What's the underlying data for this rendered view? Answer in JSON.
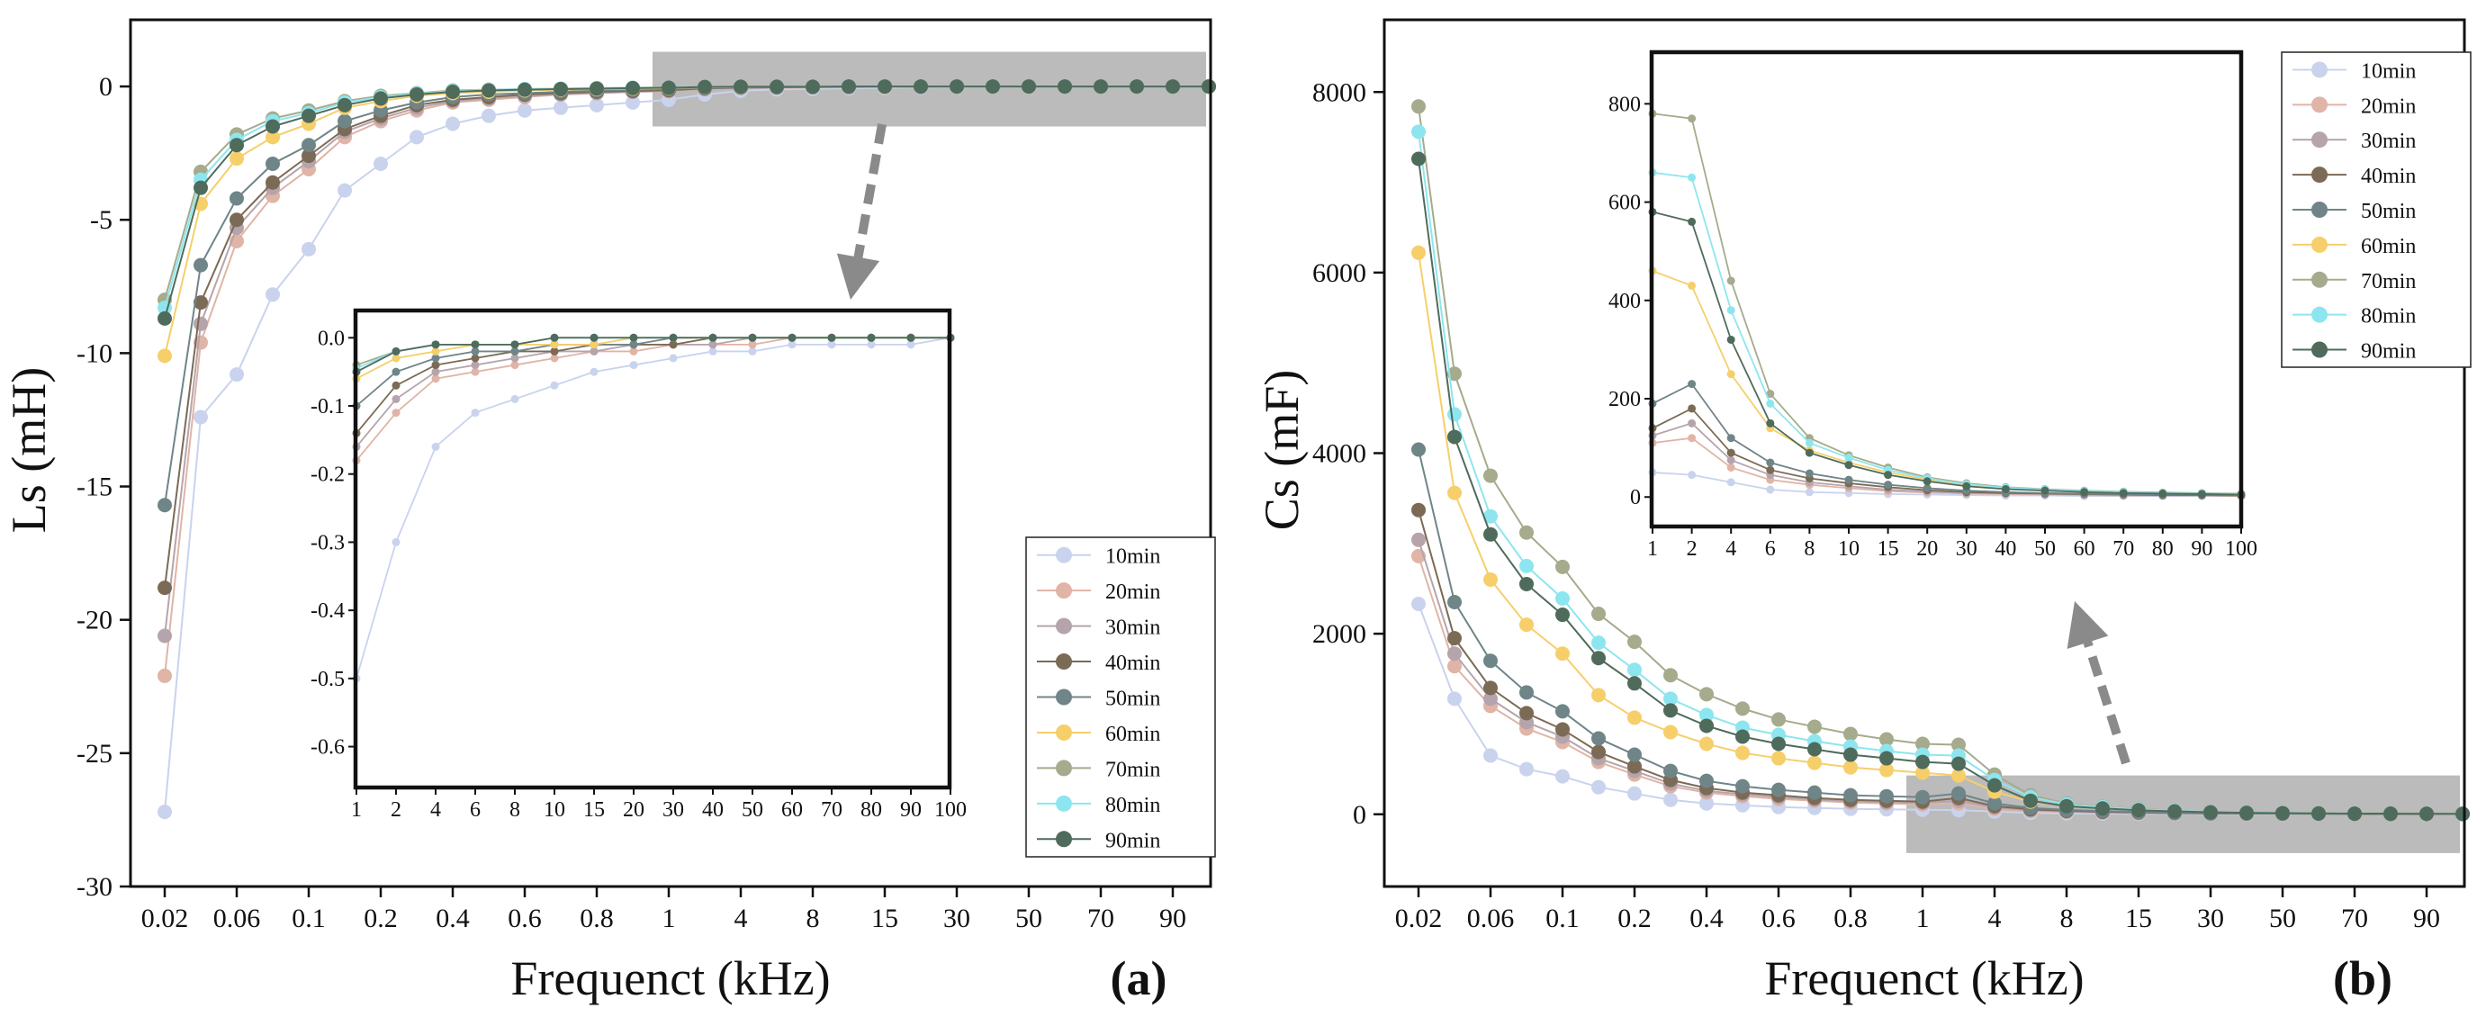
{
  "chart_data": [
    {
      "type": "line",
      "panel_label": "(a)",
      "xlabel": "Frequenct (kHz)",
      "ylabel": "Ls (mH)",
      "ylim": [
        -30,
        2.5
      ],
      "yticks": [
        0,
        -5,
        -10,
        -15,
        -20,
        -25,
        -30
      ],
      "x_positions": [
        0.02,
        0.04,
        0.06,
        0.08,
        0.1,
        0.15,
        0.2,
        0.3,
        0.4,
        0.5,
        0.6,
        0.7,
        0.8,
        0.9,
        1,
        2,
        4,
        6,
        8,
        10,
        15,
        20,
        30,
        40,
        50,
        60,
        70,
        80,
        90,
        100
      ],
      "x_tick_labels": [
        "0.02",
        "0.06",
        "0.1",
        "0.2",
        "0.4",
        "0.6",
        "0.8",
        "1",
        "4",
        "8",
        "15",
        "30",
        "50",
        "70",
        "90"
      ],
      "legend": "bottom-right",
      "series": [
        {
          "name": "10min",
          "color": "#c9d3ee",
          "values": [
            -27.2,
            -12.4,
            -10.8,
            -7.8,
            -6.1,
            -3.9,
            -2.9,
            -1.9,
            -1.4,
            -1.1,
            -0.9,
            -0.8,
            -0.7,
            -0.6,
            -0.5,
            -0.3,
            -0.16,
            -0.11,
            -0.09,
            -0.07,
            -0.05,
            -0.04,
            -0.03,
            -0.02,
            -0.02,
            -0.01,
            -0.01,
            -0.01,
            -0.01,
            0
          ]
        },
        {
          "name": "20min",
          "color": "#e0b4a6",
          "values": [
            -22.1,
            -9.6,
            -5.8,
            -4.1,
            -3.1,
            -1.9,
            -1.3,
            -0.9,
            -0.6,
            -0.5,
            -0.4,
            -0.3,
            -0.25,
            -0.2,
            -0.18,
            -0.11,
            -0.06,
            -0.05,
            -0.04,
            -0.03,
            -0.02,
            -0.02,
            -0.01,
            -0.01,
            -0.01,
            0,
            0,
            0,
            0,
            0
          ]
        },
        {
          "name": "30min",
          "color": "#b6a4ac",
          "values": [
            -20.6,
            -8.9,
            -5.3,
            -3.8,
            -2.8,
            -1.7,
            -1.2,
            -0.8,
            -0.55,
            -0.45,
            -0.35,
            -0.3,
            -0.25,
            -0.2,
            -0.16,
            -0.09,
            -0.05,
            -0.04,
            -0.03,
            -0.02,
            -0.02,
            -0.01,
            -0.01,
            -0.01,
            0,
            0,
            0,
            0,
            0,
            0
          ]
        },
        {
          "name": "40min",
          "color": "#7b6a55",
          "values": [
            -18.8,
            -8.1,
            -5.0,
            -3.6,
            -2.6,
            -1.6,
            -1.1,
            -0.7,
            -0.5,
            -0.4,
            -0.3,
            -0.25,
            -0.2,
            -0.17,
            -0.14,
            -0.07,
            -0.04,
            -0.03,
            -0.02,
            -0.02,
            -0.01,
            -0.01,
            -0.01,
            0,
            0,
            0,
            0,
            0,
            0,
            0
          ]
        },
        {
          "name": "50min",
          "color": "#6f8588",
          "values": [
            -15.7,
            -6.7,
            -4.2,
            -2.9,
            -2.2,
            -1.3,
            -0.9,
            -0.6,
            -0.4,
            -0.3,
            -0.25,
            -0.2,
            -0.15,
            -0.12,
            -0.1,
            -0.05,
            -0.03,
            -0.02,
            -0.02,
            -0.01,
            -0.01,
            -0.01,
            0,
            0,
            0,
            0,
            0,
            0,
            0,
            0
          ]
        },
        {
          "name": "60min",
          "color": "#f6cf6b",
          "values": [
            -10.1,
            -4.4,
            -2.7,
            -1.9,
            -1.4,
            -0.8,
            -0.55,
            -0.35,
            -0.25,
            -0.2,
            -0.15,
            -0.12,
            -0.1,
            -0.08,
            -0.06,
            -0.03,
            -0.02,
            -0.01,
            -0.01,
            -0.01,
            -0.01,
            0,
            0,
            0,
            0,
            0,
            0,
            0,
            0,
            0
          ]
        },
        {
          "name": "70min",
          "color": "#a5ab8c",
          "values": [
            -8.0,
            -3.2,
            -1.8,
            -1.2,
            -0.9,
            -0.55,
            -0.35,
            -0.25,
            -0.15,
            -0.12,
            -0.1,
            -0.08,
            -0.06,
            -0.05,
            -0.04,
            -0.02,
            -0.01,
            -0.01,
            -0.01,
            0,
            0,
            0,
            0,
            0,
            0,
            0,
            0,
            0,
            0,
            0
          ]
        },
        {
          "name": "80min",
          "color": "#8de6ef",
          "values": [
            -8.3,
            -3.5,
            -2.0,
            -1.3,
            -1.0,
            -0.6,
            -0.4,
            -0.27,
            -0.17,
            -0.13,
            -0.1,
            -0.08,
            -0.07,
            -0.05,
            -0.045,
            -0.02,
            -0.01,
            -0.01,
            -0.01,
            0,
            0,
            0,
            0,
            0,
            0,
            0,
            0,
            0,
            0,
            0
          ]
        },
        {
          "name": "90min",
          "color": "#4f6b5b",
          "values": [
            -8.7,
            -3.8,
            -2.2,
            -1.5,
            -1.1,
            -0.7,
            -0.45,
            -0.3,
            -0.2,
            -0.15,
            -0.12,
            -0.1,
            -0.08,
            -0.06,
            -0.05,
            -0.02,
            -0.01,
            -0.01,
            -0.01,
            0,
            0,
            0,
            0,
            0,
            0,
            0,
            0,
            0,
            0,
            0
          ]
        }
      ],
      "highlight_range": {
        "x_from": 1,
        "x_to": 100,
        "y_from": -1.5,
        "y_to": 1.3
      },
      "inset": {
        "x_positions": [
          1,
          2,
          4,
          6,
          8,
          10,
          15,
          20,
          30,
          40,
          50,
          60,
          70,
          80,
          90,
          100
        ],
        "x_tick_labels": [
          "1",
          "2",
          "4",
          "6",
          "8",
          "10",
          "15",
          "20",
          "30",
          "40",
          "50",
          "60",
          "70",
          "80",
          "90",
          "100"
        ],
        "ylim": [
          -0.66,
          0.04
        ],
        "yticks": [
          "0.0",
          "-0.1",
          "-0.2",
          "-0.3",
          "-0.4",
          "-0.5",
          "-0.6"
        ]
      }
    },
    {
      "type": "line",
      "panel_label": "(b)",
      "xlabel": "Frequenct (kHz)",
      "ylabel": "Cs (mF)",
      "ylim": [
        -800,
        8800
      ],
      "yticks": [
        0,
        2000,
        4000,
        6000,
        8000
      ],
      "x_positions": [
        0.02,
        0.04,
        0.06,
        0.08,
        0.1,
        0.15,
        0.2,
        0.3,
        0.4,
        0.5,
        0.6,
        0.7,
        0.8,
        0.9,
        1,
        2,
        4,
        6,
        8,
        10,
        15,
        20,
        30,
        40,
        50,
        60,
        70,
        80,
        90,
        100
      ],
      "x_tick_labels": [
        "0.02",
        "0.06",
        "0.1",
        "0.2",
        "0.4",
        "0.6",
        "0.8",
        "1",
        "4",
        "8",
        "15",
        "30",
        "50",
        "70",
        "90"
      ],
      "legend": "top-right",
      "series": [
        {
          "name": "10min",
          "color": "#c9d3ee",
          "values": [
            2330,
            1280,
            650,
            500,
            420,
            300,
            230,
            160,
            120,
            100,
            80,
            70,
            60,
            55,
            50,
            45,
            30,
            15,
            10,
            8,
            6,
            5,
            4,
            3,
            3,
            2,
            2,
            2,
            2,
            2
          ]
        },
        {
          "name": "20min",
          "color": "#e0b4a6",
          "values": [
            2860,
            1640,
            1200,
            950,
            800,
            580,
            440,
            310,
            240,
            200,
            170,
            150,
            130,
            120,
            110,
            120,
            60,
            35,
            25,
            18,
            12,
            9,
            7,
            6,
            5,
            4,
            3,
            3,
            3,
            2
          ]
        },
        {
          "name": "30min",
          "color": "#b6a4ac",
          "values": [
            3040,
            1780,
            1280,
            1020,
            860,
            620,
            480,
            340,
            260,
            220,
            190,
            165,
            145,
            135,
            125,
            150,
            75,
            45,
            30,
            22,
            15,
            11,
            8,
            7,
            6,
            5,
            4,
            3,
            3,
            3
          ]
        },
        {
          "name": "40min",
          "color": "#7b6a55",
          "values": [
            3370,
            1950,
            1400,
            1120,
            940,
            690,
            530,
            380,
            290,
            240,
            210,
            180,
            160,
            150,
            140,
            180,
            90,
            55,
            38,
            28,
            20,
            14,
            10,
            8,
            7,
            6,
            5,
            4,
            4,
            3
          ]
        },
        {
          "name": "50min",
          "color": "#6f8588",
          "values": [
            4040,
            2350,
            1700,
            1350,
            1140,
            840,
            660,
            480,
            370,
            310,
            270,
            240,
            210,
            200,
            190,
            230,
            120,
            70,
            48,
            35,
            25,
            18,
            13,
            10,
            8,
            7,
            6,
            5,
            5,
            4
          ]
        },
        {
          "name": "60min",
          "color": "#f6cf6b",
          "values": [
            6220,
            3560,
            2600,
            2100,
            1780,
            1320,
            1070,
            910,
            780,
            680,
            620,
            570,
            520,
            490,
            460,
            430,
            250,
            140,
            95,
            70,
            50,
            35,
            25,
            18,
            15,
            12,
            10,
            8,
            7,
            6
          ]
        },
        {
          "name": "70min",
          "color": "#a5ab8c",
          "values": [
            7840,
            4880,
            3750,
            3120,
            2740,
            2220,
            1910,
            1540,
            1330,
            1170,
            1050,
            970,
            890,
            830,
            780,
            770,
            440,
            210,
            120,
            85,
            60,
            40,
            28,
            20,
            16,
            13,
            11,
            9,
            8,
            7
          ]
        },
        {
          "name": "80min",
          "color": "#8de6ef",
          "values": [
            7560,
            4430,
            3300,
            2750,
            2390,
            1900,
            1600,
            1280,
            1100,
            960,
            880,
            810,
            750,
            700,
            660,
            650,
            380,
            190,
            110,
            80,
            55,
            38,
            26,
            19,
            15,
            12,
            10,
            8,
            7,
            6
          ]
        },
        {
          "name": "90min",
          "color": "#4f6b5b",
          "values": [
            7260,
            4180,
            3100,
            2550,
            2210,
            1730,
            1450,
            1150,
            980,
            860,
            780,
            720,
            660,
            620,
            580,
            560,
            320,
            150,
            90,
            65,
            45,
            32,
            22,
            16,
            13,
            10,
            8,
            7,
            6,
            5
          ]
        }
      ],
      "highlight_range": {
        "x_from": 1,
        "x_to": 100,
        "y_from": -430,
        "y_to": 430
      },
      "inset": {
        "x_positions": [
          1,
          2,
          4,
          6,
          8,
          10,
          15,
          20,
          30,
          40,
          50,
          60,
          70,
          80,
          90,
          100
        ],
        "x_tick_labels": [
          "1",
          "2",
          "4",
          "6",
          "8",
          "10",
          "15",
          "20",
          "30",
          "40",
          "50",
          "60",
          "70",
          "80",
          "90",
          "100"
        ],
        "ylim": [
          -60,
          905
        ],
        "yticks": [
          "0",
          "200",
          "400",
          "600",
          "800"
        ]
      }
    }
  ]
}
